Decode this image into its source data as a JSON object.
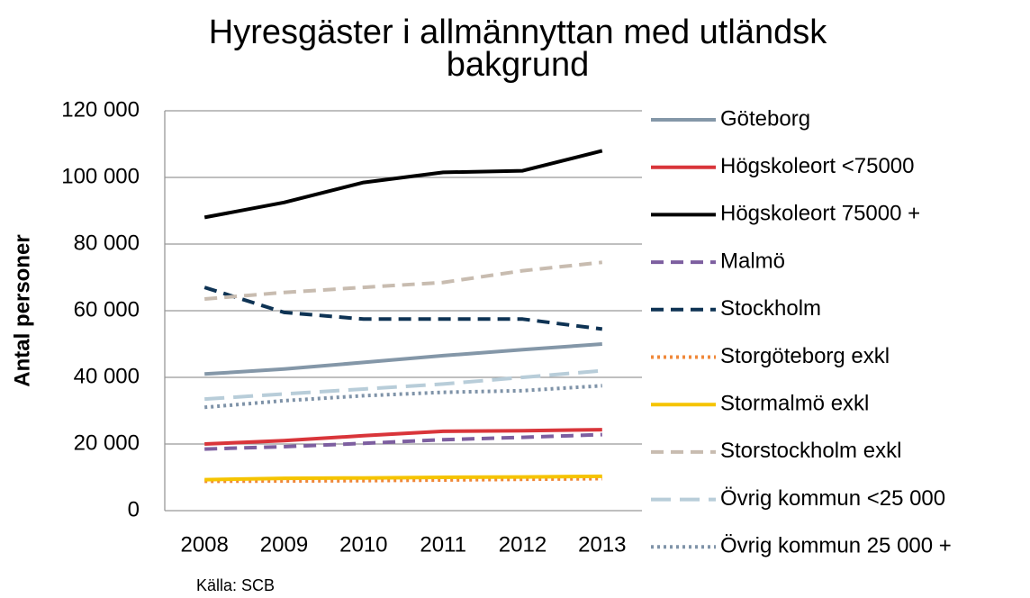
{
  "chart_data": {
    "type": "line",
    "title": "Hyresgäster i allmännyttan med utländsk bakgrund",
    "y_label": "Antal personer",
    "source": "Källa: SCB",
    "categories": [
      "2008",
      "2009",
      "2010",
      "2011",
      "2012",
      "2013"
    ],
    "ylim": [
      0,
      120000
    ],
    "yticks": [
      0,
      {
        "value": 20000,
        "label": "20 000"
      },
      {
        "value": 40000,
        "label": "40 000"
      },
      {
        "value": 60000,
        "label": "60 000"
      },
      {
        "value": 80000,
        "label": "80 000"
      },
      {
        "value": 100000,
        "label": "100 000"
      },
      {
        "value": 120000,
        "label": "120 000"
      }
    ],
    "grid": true,
    "legend": "right",
    "series": [
      {
        "name": "Göteborg",
        "color": "#8497a8",
        "dash": "solid",
        "values": [
          41000,
          42500,
          44500,
          46500,
          48300,
          50000
        ]
      },
      {
        "name": "Högskoleort <75000",
        "color": "#d9353a",
        "dash": "solid",
        "values": [
          20000,
          21000,
          22500,
          23800,
          24000,
          24300
        ]
      },
      {
        "name": "Högskoleort 75000 +",
        "color": "#000000",
        "dash": "solid",
        "values": [
          88000,
          92500,
          98500,
          101500,
          102000,
          108000
        ]
      },
      {
        "name": "Malmö",
        "color": "#7d5fa0",
        "dash": "dashed",
        "values": [
          18500,
          19200,
          20200,
          21300,
          22000,
          22800
        ]
      },
      {
        "name": "Stockholm",
        "color": "#0e3354",
        "dash": "dashed",
        "values": [
          67000,
          59500,
          57500,
          57500,
          57500,
          54500
        ]
      },
      {
        "name": "Storgöteborg exkl",
        "color": "#f0883a",
        "dash": "dotted",
        "values": [
          8800,
          8900,
          9000,
          9200,
          9400,
          9600
        ]
      },
      {
        "name": "Stormalmö exkl",
        "color": "#f5c400",
        "dash": "solid",
        "values": [
          9300,
          9700,
          9800,
          10000,
          10100,
          10300
        ]
      },
      {
        "name": "Storstockholm exkl",
        "color": "#c8bcb0",
        "dash": "dashed",
        "values": [
          63500,
          65500,
          67000,
          68500,
          72000,
          74500
        ]
      },
      {
        "name": "Övrig kommun <25 000",
        "color": "#b8cdd9",
        "dash": "longdash",
        "values": [
          33500,
          35000,
          36500,
          38000,
          40000,
          42000
        ]
      },
      {
        "name": "Övrig kommun 25 000 +",
        "color": "#7f93a8",
        "dash": "dotted",
        "values": [
          31000,
          33000,
          34500,
          35500,
          36000,
          37500
        ]
      }
    ]
  }
}
